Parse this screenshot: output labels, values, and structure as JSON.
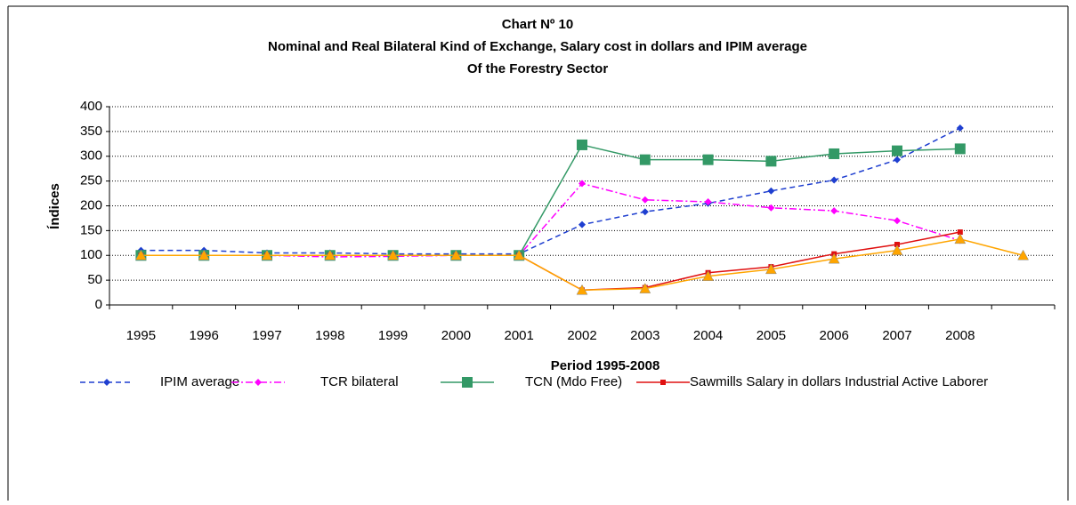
{
  "chart_data": {
    "type": "line",
    "title": "Chart Nº 10",
    "subtitle": [
      "Nominal and Real Bilateral Kind of Exchange, Salary cost in dollars and IPIM average",
      "Of the Forestry Sector"
    ],
    "x_label": "Period 1995-2008",
    "y_label": "Índices",
    "categories": [
      "1995",
      "1996",
      "1997",
      "1998",
      "1999",
      "2000",
      "2001",
      "2002",
      "2003",
      "2004",
      "2005",
      "2006",
      "2007",
      "2008",
      null
    ],
    "ylim": [
      0,
      400
    ],
    "yticks": [
      0,
      50,
      100,
      150,
      200,
      250,
      300,
      350,
      400
    ],
    "grid": true,
    "legend": "bottom",
    "series": [
      {
        "name": "IPIM average",
        "color": "#1f3fd0",
        "dash": "6,4",
        "marker": "diamond",
        "values": [
          110,
          110,
          105,
          105,
          103,
          103,
          103,
          162,
          188,
          205,
          230,
          252,
          293,
          357,
          null
        ]
      },
      {
        "name": "TCR bilateral",
        "color": "#ff00ff",
        "dash": "8,3,2,3",
        "marker": "diamond",
        "values": [
          100,
          100,
          100,
          97,
          98,
          100,
          100,
          245,
          212,
          208,
          196,
          190,
          170,
          130,
          null
        ]
      },
      {
        "name": "TCN (Mdo Free)",
        "color": "#339966",
        "marker": "square",
        "values": [
          100,
          100,
          100,
          100,
          100,
          100,
          100,
          323,
          293,
          293,
          290,
          305,
          311,
          315,
          null
        ]
      },
      {
        "name": "Sawmills Salary in dollars Industrial Active Laborer",
        "color": "#e01010",
        "marker": "smallsquare",
        "values": [
          100,
          100,
          100,
          100,
          100,
          100,
          100,
          30,
          35,
          65,
          77,
          103,
          122,
          147,
          null
        ]
      },
      {
        "color": "#ffa500",
        "marker": "triangle",
        "values": [
          100,
          100,
          100,
          100,
          100,
          100,
          100,
          30,
          33,
          58,
          72,
          93,
          110,
          133,
          100
        ]
      }
    ]
  }
}
